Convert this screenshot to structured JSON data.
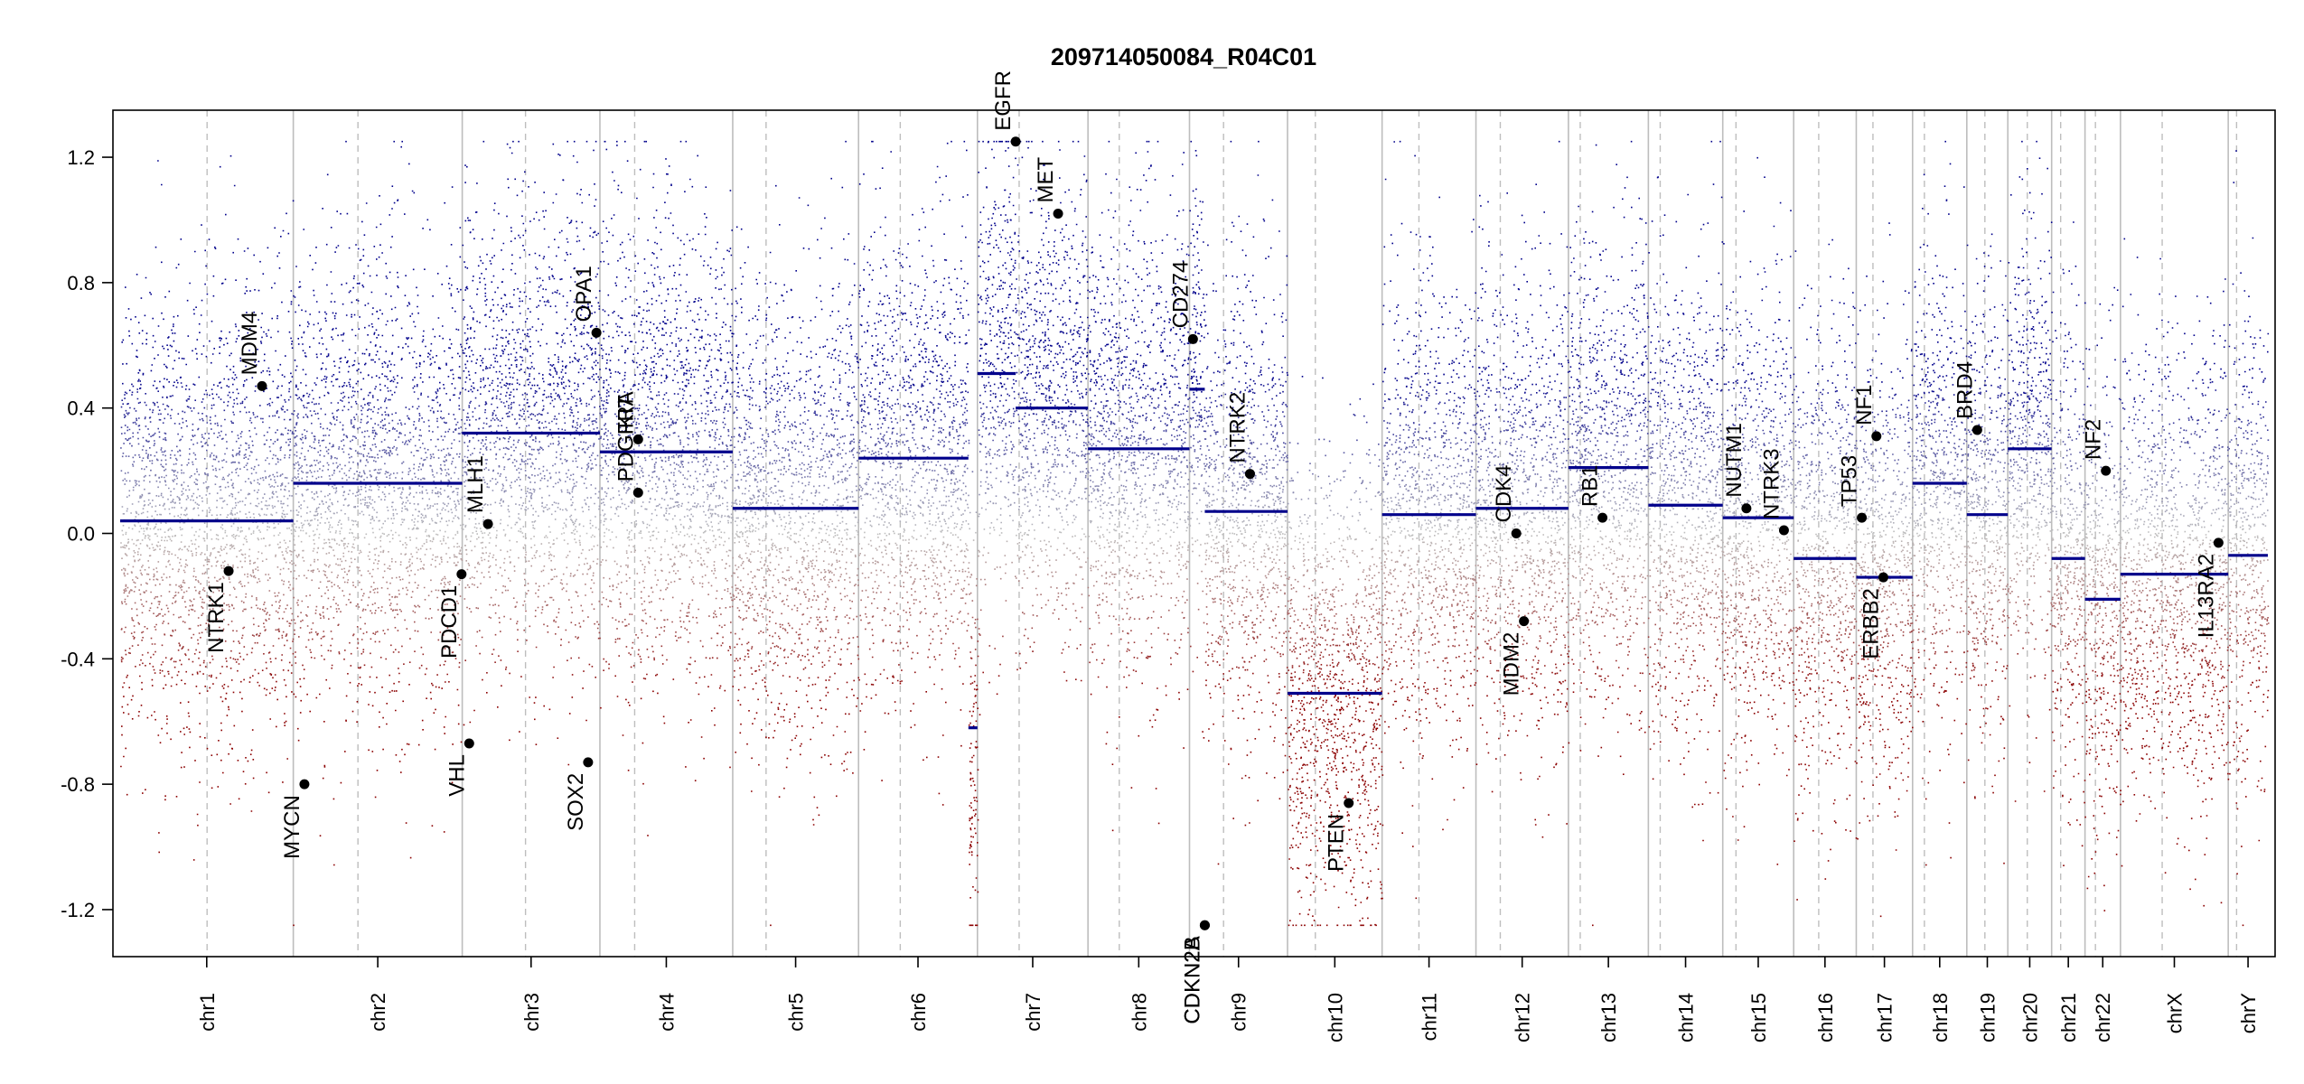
{
  "chart_data": {
    "type": "scatter",
    "title": "209714050084_R04C01",
    "xlabel": "",
    "ylabel": "",
    "ylim": [
      -1.35,
      1.35
    ],
    "y_ticks": [
      "-1.2",
      "-0.8",
      "-0.4",
      "0.0",
      "0.4",
      "0.8",
      "1.2"
    ],
    "colors": {
      "gain": "#00008B",
      "loss": "#8B0000",
      "neutral": "#BEBEBE",
      "segment": "#00008B",
      "grid": "#BEBEBE"
    },
    "chromosomes": [
      {
        "name": "chr1",
        "len": 249,
        "cen": 125
      },
      {
        "name": "chr2",
        "len": 243,
        "cen": 93
      },
      {
        "name": "chr3",
        "len": 198,
        "cen": 91
      },
      {
        "name": "chr4",
        "len": 191,
        "cen": 50
      },
      {
        "name": "chr5",
        "len": 181,
        "cen": 48
      },
      {
        "name": "chr6",
        "len": 171,
        "cen": 60
      },
      {
        "name": "chr7",
        "len": 159,
        "cen": 60
      },
      {
        "name": "chr8",
        "len": 146,
        "cen": 45
      },
      {
        "name": "chr9",
        "len": 141,
        "cen": 49
      },
      {
        "name": "chr10",
        "len": 136,
        "cen": 40
      },
      {
        "name": "chr11",
        "len": 135,
        "cen": 53
      },
      {
        "name": "chr12",
        "len": 133,
        "cen": 35
      },
      {
        "name": "chr13",
        "len": 115,
        "cen": 17
      },
      {
        "name": "chr14",
        "len": 107,
        "cen": 17
      },
      {
        "name": "chr15",
        "len": 102,
        "cen": 19
      },
      {
        "name": "chr16",
        "len": 90,
        "cen": 36
      },
      {
        "name": "chr17",
        "len": 81,
        "cen": 24
      },
      {
        "name": "chr18",
        "len": 78,
        "cen": 17
      },
      {
        "name": "chr19",
        "len": 59,
        "cen": 26
      },
      {
        "name": "chr20",
        "len": 63,
        "cen": 28
      },
      {
        "name": "chr21",
        "len": 48,
        "cen": 13
      },
      {
        "name": "chr22",
        "len": 51,
        "cen": 15
      },
      {
        "name": "chrX",
        "len": 155,
        "cen": 60
      },
      {
        "name": "chrY",
        "len": 57,
        "cen": 12
      }
    ],
    "segments": [
      {
        "chr": "chr1",
        "start": 0,
        "end": 249,
        "value": 0.04
      },
      {
        "chr": "chr2",
        "start": 0,
        "end": 243,
        "value": 0.16
      },
      {
        "chr": "chr3",
        "start": 0,
        "end": 198,
        "value": 0.32
      },
      {
        "chr": "chr4",
        "start": 0,
        "end": 191,
        "value": 0.26
      },
      {
        "chr": "chr5",
        "start": 0,
        "end": 181,
        "value": 0.08
      },
      {
        "chr": "chr6",
        "start": 0,
        "end": 158,
        "value": 0.24
      },
      {
        "chr": "chr6",
        "start": 158,
        "end": 171,
        "value": -0.62
      },
      {
        "chr": "chr7",
        "start": 0,
        "end": 55,
        "value": 0.51
      },
      {
        "chr": "chr7",
        "start": 55,
        "end": 159,
        "value": 0.4
      },
      {
        "chr": "chr8",
        "start": 0,
        "end": 146,
        "value": 0.27
      },
      {
        "chr": "chr9",
        "start": 0,
        "end": 22,
        "value": 0.46
      },
      {
        "chr": "chr9",
        "start": 22,
        "end": 141,
        "value": 0.07
      },
      {
        "chr": "chr10",
        "start": 0,
        "end": 136,
        "value": -0.51
      },
      {
        "chr": "chr11",
        "start": 0,
        "end": 135,
        "value": 0.06
      },
      {
        "chr": "chr12",
        "start": 0,
        "end": 133,
        "value": 0.08
      },
      {
        "chr": "chr13",
        "start": 0,
        "end": 115,
        "value": 0.21
      },
      {
        "chr": "chr14",
        "start": 0,
        "end": 107,
        "value": 0.09
      },
      {
        "chr": "chr15",
        "start": 0,
        "end": 102,
        "value": 0.05
      },
      {
        "chr": "chr16",
        "start": 0,
        "end": 90,
        "value": -0.08
      },
      {
        "chr": "chr17",
        "start": 0,
        "end": 81,
        "value": -0.14
      },
      {
        "chr": "chr18",
        "start": 0,
        "end": 78,
        "value": 0.16
      },
      {
        "chr": "chr19",
        "start": 0,
        "end": 59,
        "value": 0.06
      },
      {
        "chr": "chr20",
        "start": 0,
        "end": 63,
        "value": 0.27
      },
      {
        "chr": "chr21",
        "start": 0,
        "end": 48,
        "value": -0.08
      },
      {
        "chr": "chr22",
        "start": 0,
        "end": 51,
        "value": -0.21
      },
      {
        "chr": "chrX",
        "start": 0,
        "end": 155,
        "value": -0.13
      },
      {
        "chr": "chrY",
        "start": 0,
        "end": 57,
        "value": -0.07
      }
    ],
    "genes": [
      {
        "name": "NTRK1",
        "chr": "chr1",
        "pos": 156,
        "value": -0.12
      },
      {
        "name": "MDM4",
        "chr": "chr1",
        "pos": 204,
        "value": 0.47
      },
      {
        "name": "MYCN",
        "chr": "chr2",
        "pos": 16,
        "value": -0.8
      },
      {
        "name": "PDCD1",
        "chr": "chr2",
        "pos": 242,
        "value": -0.13
      },
      {
        "name": "VHL",
        "chr": "chr3",
        "pos": 10,
        "value": -0.67
      },
      {
        "name": "MLH1",
        "chr": "chr3",
        "pos": 37,
        "value": 0.03
      },
      {
        "name": "SOX2",
        "chr": "chr3",
        "pos": 181,
        "value": -0.73
      },
      {
        "name": "OPA1",
        "chr": "chr3",
        "pos": 193,
        "value": 0.64
      },
      {
        "name": "PDGFRA",
        "chr": "chr4",
        "pos": 55,
        "value": 0.13
      },
      {
        "name": "KIT",
        "chr": "chr4",
        "pos": 55,
        "value": 0.3
      },
      {
        "name": "EGFR",
        "chr": "chr7",
        "pos": 55,
        "value": 1.25
      },
      {
        "name": "MET",
        "chr": "chr7",
        "pos": 116,
        "value": 1.02
      },
      {
        "name": "CD274",
        "chr": "chr9",
        "pos": 5,
        "value": 0.62
      },
      {
        "name": "CDKN2A",
        "chr": "chr9",
        "pos": 22,
        "value": -1.25
      },
      {
        "name": "CDKN2B",
        "chr": "chr9",
        "pos": 22,
        "value": -1.25
      },
      {
        "name": "NTRK2",
        "chr": "chr9",
        "pos": 87,
        "value": 0.19
      },
      {
        "name": "PTEN",
        "chr": "chr10",
        "pos": 88,
        "value": -0.86
      },
      {
        "name": "CDK4",
        "chr": "chr12",
        "pos": 58,
        "value": 0.0
      },
      {
        "name": "MDM2",
        "chr": "chr12",
        "pos": 69,
        "value": -0.28
      },
      {
        "name": "RB1",
        "chr": "chr13",
        "pos": 49,
        "value": 0.05
      },
      {
        "name": "NUTM1",
        "chr": "chr15",
        "pos": 34,
        "value": 0.08
      },
      {
        "name": "NTRK3",
        "chr": "chr15",
        "pos": 88,
        "value": 0.01
      },
      {
        "name": "TP53",
        "chr": "chr17",
        "pos": 8,
        "value": 0.05
      },
      {
        "name": "NF1",
        "chr": "chr17",
        "pos": 29,
        "value": 0.31
      },
      {
        "name": "ERBB2",
        "chr": "chr17",
        "pos": 39,
        "value": -0.14
      },
      {
        "name": "BRD4",
        "chr": "chr19",
        "pos": 15,
        "value": 0.33
      },
      {
        "name": "NF2",
        "chr": "chr22",
        "pos": 30,
        "value": 0.2
      },
      {
        "name": "IL13RA2",
        "chr": "chrX",
        "pos": 141,
        "value": -0.03
      }
    ]
  }
}
